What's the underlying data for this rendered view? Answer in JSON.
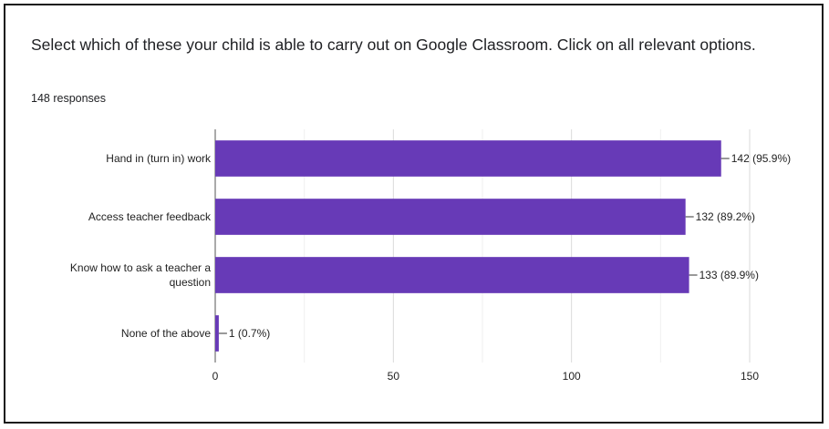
{
  "chart_data": {
    "type": "bar",
    "orientation": "horizontal",
    "title": "Select which of these your child is able to carry out on Google Classroom. Click on all relevant options.",
    "subtitle": "148 responses",
    "categories": [
      [
        "Hand in (turn in) work"
      ],
      [
        "Access teacher feedback"
      ],
      [
        "Know how to ask a teacher a",
        "question"
      ],
      [
        "None of the above"
      ]
    ],
    "values": [
      142,
      132,
      133,
      1
    ],
    "value_labels": [
      "142 (95.9%)",
      "132 (89.2%)",
      "133 (89.9%)",
      "1 (0.7%)"
    ],
    "xlim": [
      0,
      150
    ],
    "xticks": [
      0,
      50,
      100,
      150
    ],
    "grid": true,
    "legend": "none",
    "bar_color": "#673ab7"
  }
}
